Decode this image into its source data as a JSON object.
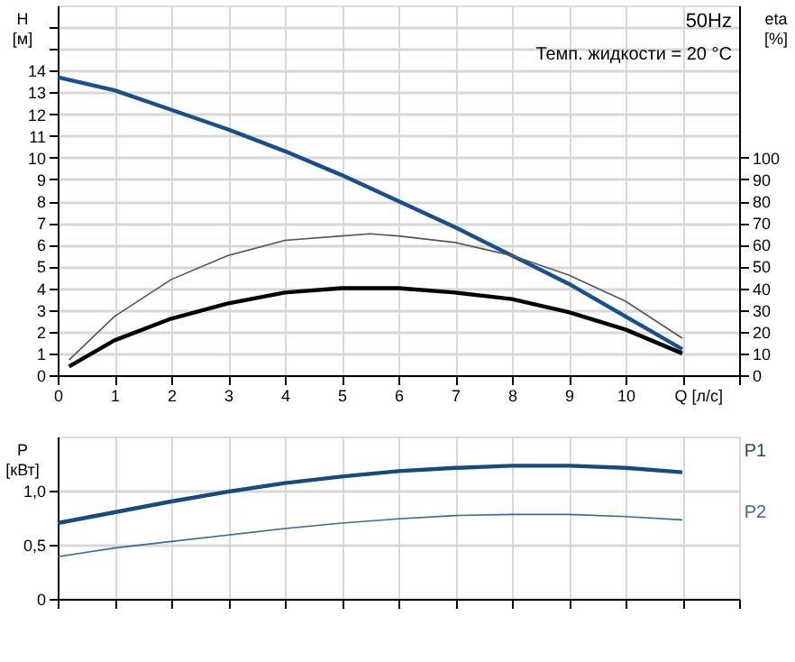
{
  "chart_data": [
    {
      "type": "line",
      "title": "50Hz",
      "annotations": [
        "Темп. жидкости = 20 °C"
      ],
      "xlabel": "Q [л/с]",
      "ylabel": "H [м]",
      "y2label": "eta [%]",
      "xlim": [
        0,
        12
      ],
      "xticks": [
        0,
        1,
        2,
        3,
        4,
        5,
        6,
        7,
        8,
        9,
        10,
        {
          "value": 11,
          "label": null
        },
        {
          "value": 12,
          "label": null
        }
      ],
      "ylim": [
        0,
        17
      ],
      "yticks": [
        0,
        1,
        2,
        3,
        4,
        5,
        6,
        7,
        8,
        9,
        10,
        11,
        12,
        13,
        14,
        {
          "value": 15,
          "label": null
        },
        {
          "value": 16,
          "label": null
        }
      ],
      "y2lim": [
        0,
        170
      ],
      "y2ticks": [
        0,
        10,
        20,
        30,
        40,
        50,
        60,
        70,
        80,
        90,
        100
      ],
      "grid": true,
      "series": [
        {
          "color": "#1b4f8a",
          "x": [
            0,
            1,
            2,
            3,
            4,
            5,
            6,
            7,
            8,
            9,
            10,
            11
          ],
          "values": [
            13.7,
            13.1,
            12.2,
            11.3,
            10.3,
            9.2,
            8.0,
            6.8,
            5.5,
            4.2,
            2.7,
            1.2
          ]
        },
        {
          "color": "#555555",
          "axis": "y2",
          "x": [
            0.2,
            1,
            2,
            3,
            4,
            5,
            5.5,
            6,
            7,
            8,
            9,
            10,
            11
          ],
          "values": [
            7,
            27,
            44,
            55,
            62,
            64,
            65,
            64,
            61,
            55,
            46,
            34,
            17
          ]
        },
        {
          "color": "#000000",
          "axis": "y2",
          "x": [
            0.2,
            1,
            2,
            3,
            4,
            5,
            5.5,
            6,
            7,
            8,
            9,
            10,
            11
          ],
          "values": [
            4,
            16,
            26,
            33,
            38,
            40,
            40,
            40,
            38,
            35,
            29,
            21,
            10
          ]
        }
      ]
    },
    {
      "type": "line",
      "ylabel": "P [кВт]",
      "tick_labels": "y",
      "xlim": [
        0,
        12
      ],
      "xticks": [
        0,
        1,
        2,
        3,
        4,
        5,
        6,
        7,
        8,
        9,
        10,
        11,
        12
      ],
      "ylim": [
        0,
        1.5
      ],
      "yticks": [
        0,
        {
          "value": 0.5,
          "label": "0,5"
        },
        {
          "value": 1.0,
          "label": "1,0"
        }
      ],
      "grid": true,
      "series": [
        {
          "name": "P1",
          "color": "#1b4a7a",
          "x": [
            0,
            1,
            2,
            3,
            4,
            5,
            6,
            7,
            8,
            9,
            10,
            11
          ],
          "values": [
            0.7,
            0.8,
            0.9,
            0.99,
            1.07,
            1.13,
            1.18,
            1.21,
            1.23,
            1.23,
            1.21,
            1.17
          ]
        },
        {
          "name": "P2",
          "color": "#3a6a9a",
          "x": [
            0,
            1,
            2,
            3,
            4,
            5,
            6,
            7,
            8,
            9,
            10,
            11
          ],
          "values": [
            0.39,
            0.47,
            0.53,
            0.59,
            0.65,
            0.7,
            0.74,
            0.77,
            0.78,
            0.78,
            0.76,
            0.73
          ]
        }
      ]
    }
  ]
}
